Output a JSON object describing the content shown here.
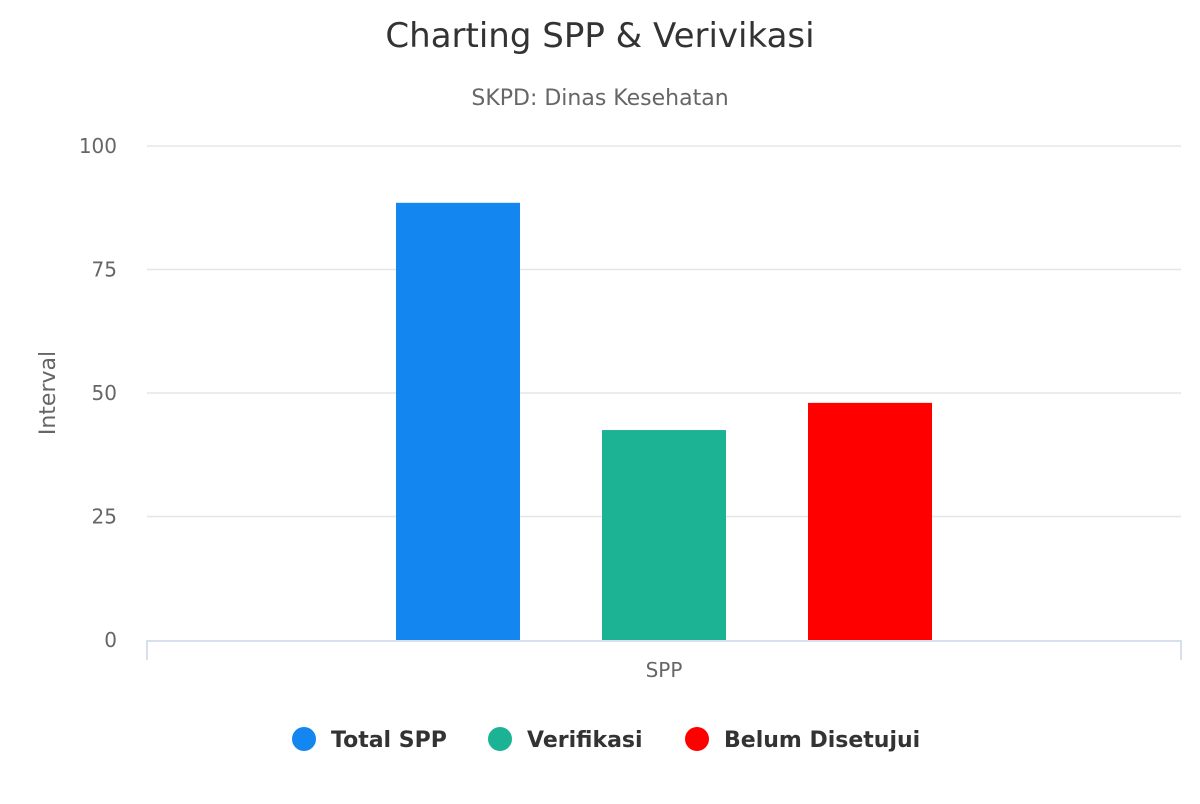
{
  "chart_data": {
    "type": "bar",
    "title": "Charting SPP & Verivikasi",
    "subtitle": "SKPD: Dinas Kesehatan",
    "ylabel": "Interval",
    "categories": [
      "SPP"
    ],
    "ylim": [
      0,
      100
    ],
    "yticks": [
      0,
      25,
      50,
      75,
      100
    ],
    "grid": true,
    "legend_position": "bottom-center",
    "series": [
      {
        "name": "Total SPP",
        "color": "#1386ef",
        "values": [
          88.5
        ]
      },
      {
        "name": "Verifikasi",
        "color": "#1bb394",
        "values": [
          42.5
        ]
      },
      {
        "name": "Belum Disetujui",
        "color": "#ff0000",
        "values": [
          48
        ]
      }
    ]
  }
}
